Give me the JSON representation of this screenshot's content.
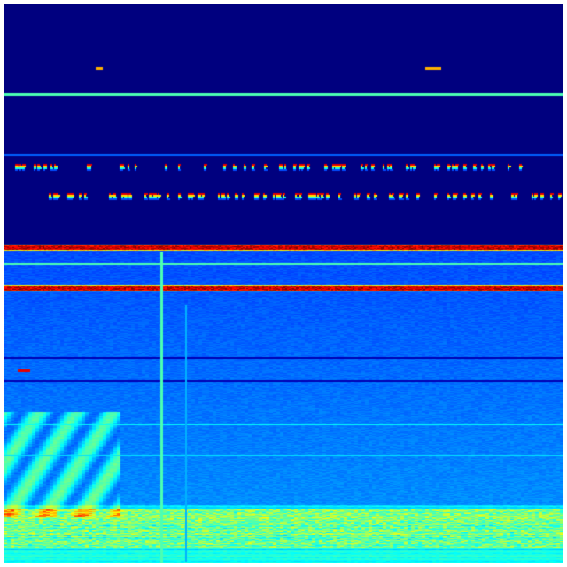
{
  "image": {
    "kind": "spectrogram-heatmap",
    "colormap": "jet",
    "colors": {
      "background": "#ffffff",
      "low": "#00007f",
      "blue": "#0000ff",
      "cyan": "#00ffff",
      "yellow": "#ffff00",
      "red": "#ff0000",
      "high": "#7f0000"
    }
  }
}
